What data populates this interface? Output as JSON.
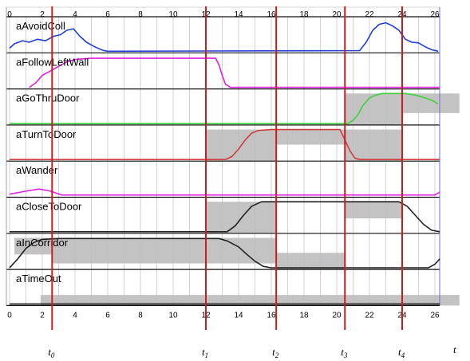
{
  "chart_data": {
    "type": "line",
    "title": "",
    "xlabel": "t",
    "ylabel": "",
    "xlim": [
      0,
      26.5
    ],
    "ylim": [
      0,
      1
    ],
    "grid": true,
    "x_ticks": [
      "0",
      "2",
      "4",
      "6",
      "8",
      "10",
      "12",
      "14",
      "16",
      "18",
      "20",
      "22",
      "24",
      "26"
    ],
    "colors": {
      "blue": "#1f3fd6",
      "magenta": "#e020e0",
      "green": "#3cd23c",
      "red": "#d03c3c",
      "black": "#222222",
      "shade": "#bdbdbd",
      "event": "#c81e1e",
      "grid": "#c8c8c8"
    },
    "events": [
      {
        "main": "t",
        "sub": "0",
        "x": 2.6
      },
      {
        "main": "t",
        "sub": "1",
        "x": 12.0
      },
      {
        "main": "t",
        "sub": "2",
        "x": 16.3
      },
      {
        "main": "t",
        "sub": "3",
        "x": 20.5
      },
      {
        "main": "t",
        "sub": "4",
        "x": 24.0
      }
    ],
    "series": [
      {
        "name": "aAvoidColl",
        "color": "blue",
        "x": [
          0,
          0.3,
          0.8,
          1.2,
          1.7,
          2.2,
          2.7,
          3.1,
          3.5,
          3.9,
          4.3,
          4.7,
          5.2,
          5.7,
          6,
          21.4,
          21.8,
          22.2,
          22.6,
          23.0,
          23.4,
          23.8,
          24.2,
          24.6,
          25.0,
          25.4,
          25.8,
          26.2
        ],
        "y": [
          0.1,
          0.25,
          0.35,
          0.3,
          0.4,
          0.35,
          0.5,
          0.55,
          0.7,
          0.75,
          0.5,
          0.3,
          0.15,
          0.03,
          0,
          0.02,
          0.3,
          0.7,
          0.9,
          0.95,
          0.85,
          0.7,
          0.4,
          0.3,
          0.28,
          0.15,
          0.05,
          0
        ]
      },
      {
        "name": "aFollowLeftWall",
        "color": "magenta",
        "x": [
          1.2,
          1.6,
          2.0,
          2.5,
          3.0,
          3.5,
          4.0,
          5.0,
          12.6,
          12.8,
          13.0,
          13.2,
          13.5,
          26.3
        ],
        "y": [
          0,
          0.15,
          0.4,
          0.55,
          0.7,
          0.85,
          0.93,
          0.97,
          0.97,
          0.75,
          0.4,
          0.1,
          0,
          0
        ]
      },
      {
        "name": "aGoThruDoor",
        "color": "green",
        "x": [
          0,
          20.7,
          21.0,
          21.3,
          21.6,
          22.0,
          22.4,
          22.8,
          23.4,
          24.2,
          24.8,
          25.4,
          25.8,
          26.2
        ],
        "y": [
          0,
          0,
          0.1,
          0.3,
          0.6,
          0.85,
          0.95,
          1.0,
          1.0,
          1.0,
          0.95,
          0.85,
          0.78,
          0.65
        ]
      },
      {
        "name": "aTurnToDoor",
        "color": "red",
        "x": [
          0,
          13.2,
          13.6,
          14.0,
          14.4,
          14.8,
          15.2,
          16.0,
          20.2,
          20.5,
          20.8,
          21.1,
          21.4,
          26.3
        ],
        "y": [
          0,
          0,
          0.1,
          0.35,
          0.65,
          0.88,
          0.97,
          1.0,
          1.0,
          0.65,
          0.3,
          0.05,
          0,
          0
        ]
      },
      {
        "name": "aWander",
        "color": "magenta",
        "x": [
          0,
          1.0,
          1.8,
          2.5,
          3.2,
          26.0,
          26.3
        ],
        "y": [
          0.05,
          0.15,
          0.22,
          0.15,
          0.02,
          0.02,
          0.12
        ]
      },
      {
        "name": "aCloseToDoor",
        "color": "black",
        "x": [
          0,
          13.3,
          13.8,
          14.3,
          14.8,
          15.4,
          16.0,
          23.8,
          24.3,
          24.8,
          25.3,
          25.8,
          26.3
        ],
        "y": [
          0,
          0,
          0.2,
          0.55,
          0.85,
          1.0,
          1.0,
          1.0,
          0.85,
          0.55,
          0.25,
          0.05,
          0
        ]
      },
      {
        "name": "aInCorridor",
        "color": "black",
        "x": [
          0,
          0.5,
          1.0,
          1.5,
          2.0,
          3.0,
          12.8,
          13.3,
          14.0,
          14.5,
          15.0,
          15.5,
          16.0,
          25.6,
          26.0,
          26.3
        ],
        "y": [
          0,
          0.3,
          0.65,
          0.85,
          0.95,
          0.98,
          0.98,
          0.9,
          0.7,
          0.45,
          0.22,
          0.05,
          0,
          0,
          0.12,
          0.3
        ]
      },
      {
        "name": "aTimeOut",
        "color": "black",
        "x": [
          0,
          26.3
        ],
        "y": [
          0,
          0
        ]
      }
    ],
    "shaded_regions": [
      {
        "track": "aGoThruDoor",
        "x0": 20.5,
        "x1": 24.0,
        "y0": 0,
        "y1": 1
      },
      {
        "track": "aGoThruDoor",
        "x0": 24.0,
        "x1": 27.5,
        "y0": 0.4,
        "y1": 1
      },
      {
        "track": "aTurnToDoor",
        "x0": 12.0,
        "x1": 16.3,
        "y0": 0,
        "y1": 1
      },
      {
        "track": "aTurnToDoor",
        "x0": 16.3,
        "x1": 20.5,
        "y0": 0.55,
        "y1": 1
      },
      {
        "track": "aTurnToDoor",
        "x0": 20.5,
        "x1": 24.0,
        "y0": 0,
        "y1": 1
      },
      {
        "track": "aCloseToDoor",
        "x0": 12.0,
        "x1": 16.3,
        "y0": 0,
        "y1": 1
      },
      {
        "track": "aCloseToDoor",
        "x0": 20.5,
        "x1": 24.0,
        "y0": 0.5,
        "y1": 1
      },
      {
        "track": "aInCorridor",
        "x0": 0.3,
        "x1": 2.6,
        "y0": 0.5,
        "y1": 1
      },
      {
        "track": "aInCorridor",
        "x0": 2.6,
        "x1": 16.3,
        "y0": 0.2,
        "y1": 1
      },
      {
        "track": "aInCorridor",
        "x0": 16.3,
        "x1": 20.5,
        "y0": 0,
        "y1": 0.5
      },
      {
        "track": "aTimeOut",
        "x0": 1.9,
        "x1": 27.5,
        "y0": 0,
        "y1": 0.3
      }
    ]
  }
}
